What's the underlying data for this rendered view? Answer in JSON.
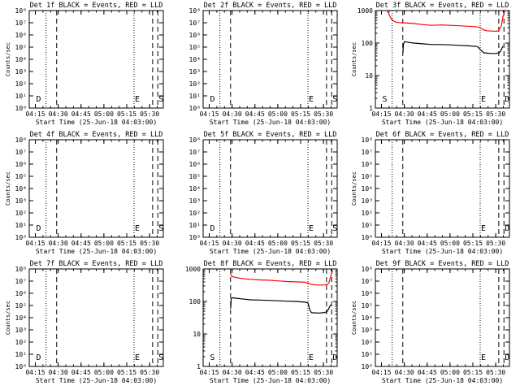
{
  "chart_data": [
    {
      "type": "line",
      "title": "Det 1f BLACK = Events, RED = LLD",
      "xlabel": "Start Time (25-Jun-18 04:03:00)",
      "ylabel": "Counts/sec",
      "yscale": "log",
      "ylim": [
        1,
        100000000
      ],
      "ytick_labels": [
        "10⁰",
        "10¹",
        "10²",
        "10³",
        "10⁴",
        "10⁵",
        "10⁶",
        "10⁷",
        "10⁸"
      ],
      "xlim": [
        4.1833,
        5.65
      ],
      "xtick_labels": [
        "04:15",
        "04:30",
        "04:45",
        "05:00",
        "05:15",
        "05:30"
      ],
      "xtick_values": [
        4.25,
        4.5,
        4.75,
        5.0,
        5.25,
        5.5
      ],
      "vlines": [
        {
          "x": 4.3667,
          "style": "dotted"
        },
        {
          "x": 4.4833,
          "style": "dashed"
        },
        {
          "x": 5.33,
          "style": "dotted"
        },
        {
          "x": 5.5333,
          "style": "dashed"
        },
        {
          "x": 5.59,
          "style": "dashed"
        }
      ],
      "markers": [
        {
          "x": 4.25,
          "text": "D"
        },
        {
          "x": 5.33,
          "text": "E"
        },
        {
          "x": 5.59,
          "text": "S"
        }
      ],
      "series": []
    },
    {
      "type": "line",
      "title": "Det 2f BLACK = Events, RED = LLD",
      "xlabel": "Start Time (25-Jun-18 04:03:00)",
      "ylabel": "",
      "yscale": "log",
      "ylim": [
        1,
        100000000
      ],
      "ytick_labels": [
        "10⁰",
        "10¹",
        "10²",
        "10³",
        "10⁴",
        "10⁵",
        "10⁶",
        "10⁷",
        "10⁸"
      ],
      "xlim": [
        4.1833,
        5.65
      ],
      "xtick_labels": [
        "04:15",
        "04:30",
        "04:45",
        "05:00",
        "05:15",
        "05:30"
      ],
      "xtick_values": [
        4.25,
        4.5,
        4.75,
        5.0,
        5.25,
        5.5
      ],
      "vlines": [
        {
          "x": 4.3667,
          "style": "dotted"
        },
        {
          "x": 4.4833,
          "style": "dashed"
        },
        {
          "x": 5.33,
          "style": "dotted"
        },
        {
          "x": 5.5333,
          "style": "dashed"
        },
        {
          "x": 5.59,
          "style": "dashed"
        }
      ],
      "markers": [
        {
          "x": 4.25,
          "text": "D"
        },
        {
          "x": 5.33,
          "text": "E"
        },
        {
          "x": 5.59,
          "text": "S"
        }
      ],
      "series": []
    },
    {
      "type": "line",
      "title": "Det 3f BLACK = Events, RED = LLD",
      "xlabel": "Start Time (25-Jun-18 04:03:00)",
      "ylabel": "Counts/sec",
      "yscale": "log",
      "ylim": [
        1,
        1000
      ],
      "ytick_labels": [
        "1",
        "10",
        "100",
        "1000"
      ],
      "xlim": [
        4.1833,
        5.65
      ],
      "xtick_labels": [
        "04:15",
        "04:30",
        "04:45",
        "05:00",
        "05:15",
        "05:30"
      ],
      "xtick_values": [
        4.25,
        4.5,
        4.75,
        5.0,
        5.25,
        5.5
      ],
      "vlines": [
        {
          "x": 4.3667,
          "style": "dotted"
        },
        {
          "x": 4.4833,
          "style": "dashed"
        },
        {
          "x": 5.33,
          "style": "dotted"
        },
        {
          "x": 5.5333,
          "style": "dashed"
        },
        {
          "x": 5.59,
          "style": "dashed"
        }
      ],
      "markers": [
        {
          "x": 4.25,
          "text": "S"
        },
        {
          "x": 5.33,
          "text": "E"
        },
        {
          "x": 5.59,
          "text": "D"
        }
      ],
      "series": [
        {
          "color": "#ff0000",
          "points": [
            [
              4.31,
              1000
            ],
            [
              4.33,
              800
            ],
            [
              4.35,
              600
            ],
            [
              4.38,
              480
            ],
            [
              4.42,
              430
            ],
            [
              4.5,
              420
            ],
            [
              4.6,
              400
            ],
            [
              4.7,
              370
            ],
            [
              4.8,
              350
            ],
            [
              4.9,
              360
            ],
            [
              5.0,
              350
            ],
            [
              5.1,
              340
            ],
            [
              5.2,
              330
            ],
            [
              5.28,
              320
            ],
            [
              5.33,
              300
            ],
            [
              5.36,
              260
            ],
            [
              5.4,
              240
            ],
            [
              5.45,
              235
            ],
            [
              5.5,
              230
            ],
            [
              5.53,
              240
            ],
            [
              5.56,
              330
            ],
            [
              5.58,
              650
            ],
            [
              5.6,
              1000
            ]
          ]
        },
        {
          "color": "#000000",
          "points": [
            [
              4.485,
              50
            ],
            [
              4.49,
              90
            ],
            [
              4.5,
              110
            ],
            [
              4.55,
              105
            ],
            [
              4.6,
              100
            ],
            [
              4.7,
              95
            ],
            [
              4.8,
              90
            ],
            [
              4.9,
              90
            ],
            [
              5.0,
              88
            ],
            [
              5.1,
              85
            ],
            [
              5.2,
              82
            ],
            [
              5.3,
              78
            ],
            [
              5.34,
              60
            ],
            [
              5.37,
              50
            ],
            [
              5.45,
              48
            ],
            [
              5.5,
              48
            ],
            [
              5.535,
              50
            ],
            [
              5.55,
              55
            ],
            [
              5.58,
              80
            ]
          ]
        }
      ]
    },
    {
      "type": "line",
      "title": "Det 4f BLACK = Events, RED = LLD",
      "xlabel": "Start Time (25-Jun-18 04:03:00)",
      "ylabel": "Counts/sec",
      "yscale": "log",
      "ylim": [
        1,
        100000000
      ],
      "ytick_labels": [
        "10⁰",
        "10¹",
        "10²",
        "10³",
        "10⁴",
        "10⁵",
        "10⁶",
        "10⁷",
        "10⁸"
      ],
      "xlim": [
        4.1833,
        5.65
      ],
      "xtick_labels": [
        "04:15",
        "04:30",
        "04:45",
        "05:00",
        "05:15",
        "05:30"
      ],
      "xtick_values": [
        4.25,
        4.5,
        4.75,
        5.0,
        5.25,
        5.5
      ],
      "vlines": [
        {
          "x": 4.3667,
          "style": "dotted"
        },
        {
          "x": 4.4833,
          "style": "dashed"
        },
        {
          "x": 5.33,
          "style": "dotted"
        },
        {
          "x": 5.5333,
          "style": "dashed"
        },
        {
          "x": 5.59,
          "style": "dashed"
        }
      ],
      "markers": [
        {
          "x": 4.25,
          "text": "D"
        },
        {
          "x": 5.33,
          "text": "E"
        },
        {
          "x": 5.59,
          "text": "S"
        }
      ],
      "series": []
    },
    {
      "type": "line",
      "title": "Det 5f BLACK = Events, RED = LLD",
      "xlabel": "Start Time (25-Jun-18 04:03:00)",
      "ylabel": "",
      "yscale": "log",
      "ylim": [
        1,
        100000000
      ],
      "ytick_labels": [
        "10⁰",
        "10¹",
        "10²",
        "10³",
        "10⁴",
        "10⁵",
        "10⁶",
        "10⁷",
        "10⁸"
      ],
      "xlim": [
        4.1833,
        5.65
      ],
      "xtick_labels": [
        "04:15",
        "04:30",
        "04:45",
        "05:00",
        "05:15",
        "05:30"
      ],
      "xtick_values": [
        4.25,
        4.5,
        4.75,
        5.0,
        5.25,
        5.5
      ],
      "vlines": [
        {
          "x": 4.3667,
          "style": "dotted"
        },
        {
          "x": 4.4833,
          "style": "dashed"
        },
        {
          "x": 5.33,
          "style": "dotted"
        },
        {
          "x": 5.5333,
          "style": "dashed"
        },
        {
          "x": 5.59,
          "style": "dashed"
        }
      ],
      "markers": [
        {
          "x": 4.25,
          "text": "D"
        },
        {
          "x": 5.33,
          "text": "E"
        },
        {
          "x": 5.59,
          "text": "S"
        }
      ],
      "series": []
    },
    {
      "type": "line",
      "title": "Det 6f BLACK = Events, RED = LLD",
      "xlabel": "Start Time (25-Jun-18 04:03:00)",
      "ylabel": "Counts/sec",
      "yscale": "log",
      "ylim": [
        1,
        100000000
      ],
      "ytick_labels": [
        "10⁰",
        "10¹",
        "10²",
        "10³",
        "10⁴",
        "10⁵",
        "10⁶",
        "10⁷",
        "10⁸"
      ],
      "xlim": [
        4.1833,
        5.65
      ],
      "xtick_labels": [
        "04:15",
        "04:30",
        "04:45",
        "05:00",
        "05:15",
        "05:30"
      ],
      "xtick_values": [
        4.25,
        4.5,
        4.75,
        5.0,
        5.25,
        5.5
      ],
      "vlines": [
        {
          "x": 4.3667,
          "style": "dotted"
        },
        {
          "x": 4.4833,
          "style": "dashed"
        },
        {
          "x": 5.33,
          "style": "dotted"
        },
        {
          "x": 5.5333,
          "style": "dashed"
        },
        {
          "x": 5.59,
          "style": "dashed"
        }
      ],
      "markers": [
        {
          "x": 5.33,
          "text": "E"
        },
        {
          "x": 5.59,
          "text": "D"
        }
      ],
      "series": []
    },
    {
      "type": "line",
      "title": "Det 7f BLACK = Events, RED = LLD",
      "xlabel": "Start Time (25-Jun-18 04:03:00)",
      "ylabel": "Counts/sec",
      "yscale": "log",
      "ylim": [
        1,
        100000000
      ],
      "ytick_labels": [
        "10⁰",
        "10¹",
        "10²",
        "10³",
        "10⁴",
        "10⁵",
        "10⁶",
        "10⁷",
        "10⁸"
      ],
      "xlim": [
        4.1833,
        5.65
      ],
      "xtick_labels": [
        "04:15",
        "04:30",
        "04:45",
        "05:00",
        "05:15",
        "05:30"
      ],
      "xtick_values": [
        4.25,
        4.5,
        4.75,
        5.0,
        5.25,
        5.5
      ],
      "vlines": [
        {
          "x": 4.3667,
          "style": "dotted"
        },
        {
          "x": 4.4833,
          "style": "dashed"
        },
        {
          "x": 5.33,
          "style": "dotted"
        },
        {
          "x": 5.5333,
          "style": "dashed"
        },
        {
          "x": 5.59,
          "style": "dashed"
        }
      ],
      "markers": [
        {
          "x": 4.25,
          "text": "D"
        },
        {
          "x": 5.33,
          "text": "E"
        },
        {
          "x": 5.59,
          "text": "S"
        }
      ],
      "series": []
    },
    {
      "type": "line",
      "title": "Det 8f BLACK = Events, RED = LLD",
      "xlabel": "Start Time (25-Jun-18 04:03:00)",
      "ylabel": "",
      "yscale": "log",
      "ylim": [
        1,
        1000
      ],
      "ytick_labels": [
        "1",
        "10",
        "100",
        "1000"
      ],
      "xlim": [
        4.1833,
        5.65
      ],
      "xtick_labels": [
        "04:15",
        "04:30",
        "04:45",
        "05:00",
        "05:15",
        "05:30"
      ],
      "xtick_values": [
        4.25,
        4.5,
        4.75,
        5.0,
        5.25,
        5.5
      ],
      "vlines": [
        {
          "x": 4.3667,
          "style": "dotted"
        },
        {
          "x": 4.4833,
          "style": "dashed"
        },
        {
          "x": 5.33,
          "style": "dotted"
        },
        {
          "x": 5.5333,
          "style": "dashed"
        },
        {
          "x": 5.59,
          "style": "dashed"
        }
      ],
      "markers": [
        {
          "x": 4.25,
          "text": "S"
        },
        {
          "x": 5.33,
          "text": "E"
        },
        {
          "x": 5.59,
          "text": "D"
        }
      ],
      "series": [
        {
          "color": "#ff0000",
          "points": [
            [
              4.485,
              700
            ],
            [
              4.5,
              580
            ],
            [
              4.55,
              540
            ],
            [
              4.6,
              510
            ],
            [
              4.7,
              480
            ],
            [
              4.8,
              460
            ],
            [
              4.9,
              450
            ],
            [
              5.0,
              430
            ],
            [
              5.1,
              410
            ],
            [
              5.2,
              400
            ],
            [
              5.3,
              390
            ],
            [
              5.34,
              360
            ],
            [
              5.37,
              330
            ],
            [
              5.45,
              320
            ],
            [
              5.5,
              320
            ],
            [
              5.54,
              330
            ],
            [
              5.56,
              380
            ],
            [
              5.58,
              600
            ],
            [
              5.6,
              900
            ]
          ]
        },
        {
          "color": "#000000",
          "points": [
            [
              4.485,
              60
            ],
            [
              4.49,
              120
            ],
            [
              4.5,
              130
            ],
            [
              4.55,
              125
            ],
            [
              4.6,
              120
            ],
            [
              4.7,
              112
            ],
            [
              4.8,
              110
            ],
            [
              4.9,
              108
            ],
            [
              5.0,
              105
            ],
            [
              5.1,
              102
            ],
            [
              5.2,
              100
            ],
            [
              5.3,
              95
            ],
            [
              5.33,
              90
            ],
            [
              5.35,
              55
            ],
            [
              5.37,
              45
            ],
            [
              5.45,
              44
            ],
            [
              5.5,
              45
            ],
            [
              5.535,
              48
            ],
            [
              5.55,
              55
            ],
            [
              5.58,
              80
            ]
          ]
        }
      ]
    },
    {
      "type": "line",
      "title": "Det 9f BLACK = Events, RED = LLD",
      "xlabel": "Start Time (25-Jun-18 04:03:00)",
      "ylabel": "Counts/sec",
      "yscale": "log",
      "ylim": [
        1,
        100000000
      ],
      "ytick_labels": [
        "10⁰",
        "10¹",
        "10²",
        "10³",
        "10⁴",
        "10⁵",
        "10⁶",
        "10⁷",
        "10⁸"
      ],
      "xlim": [
        4.1833,
        5.65
      ],
      "xtick_labels": [
        "04:15",
        "04:30",
        "04:45",
        "05:00",
        "05:15",
        "05:30"
      ],
      "xtick_values": [
        4.25,
        4.5,
        4.75,
        5.0,
        5.25,
        5.5
      ],
      "vlines": [
        {
          "x": 4.3667,
          "style": "dotted"
        },
        {
          "x": 4.4833,
          "style": "dashed"
        },
        {
          "x": 5.33,
          "style": "dotted"
        },
        {
          "x": 5.5333,
          "style": "dashed"
        },
        {
          "x": 5.59,
          "style": "dashed"
        }
      ],
      "markers": [
        {
          "x": 5.33,
          "text": "E"
        },
        {
          "x": 5.59,
          "text": "D"
        }
      ],
      "series": []
    }
  ]
}
